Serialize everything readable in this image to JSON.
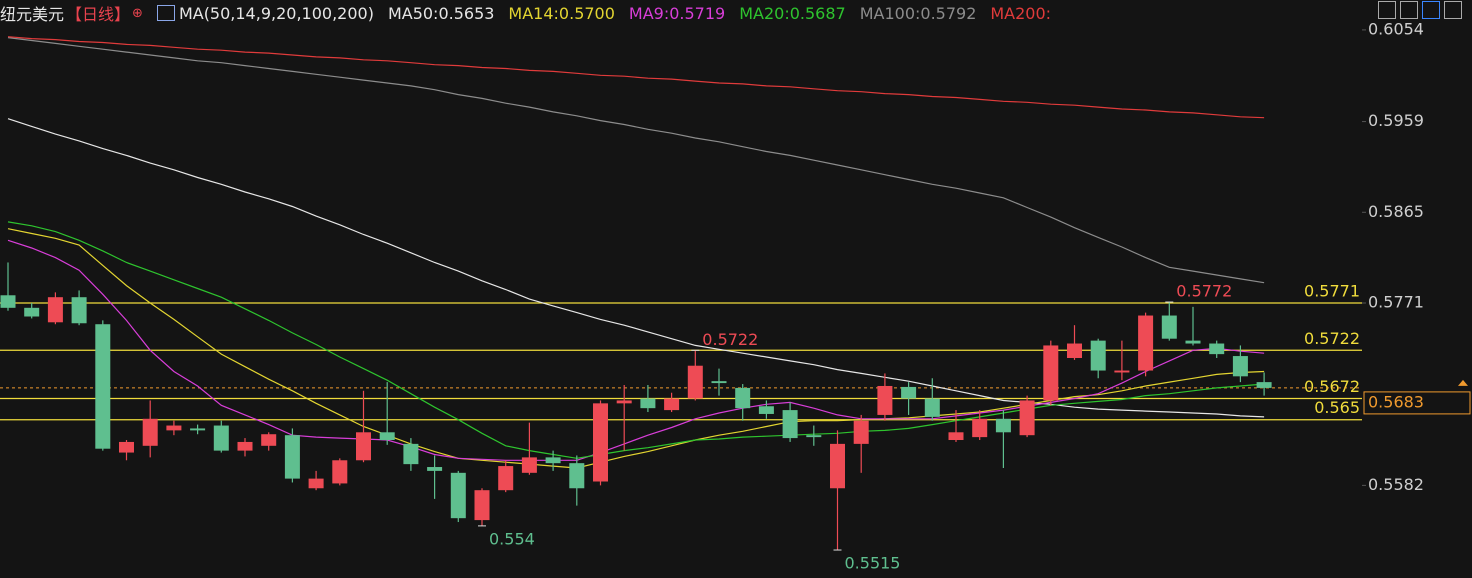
{
  "chart_data": {
    "type": "candlestick",
    "title": "纽元美元",
    "period": "【日线】",
    "indicator": "MA(50,14,9,20,100,200)",
    "up_color": "#ee4b55",
    "down_color": "#5fbf8f",
    "ylim": [
      0.5486,
      0.6085
    ],
    "yticks": [
      0.6054,
      0.5959,
      0.5865,
      0.5771,
      0.5582
    ],
    "open": [
      0.5779,
      0.5766,
      0.5751,
      0.5777,
      0.5749,
      0.5616,
      0.5623,
      0.5639,
      0.5641,
      0.5644,
      0.5618,
      0.5623,
      0.5634,
      0.5579,
      0.5584,
      0.5608,
      0.5637,
      0.5625,
      0.5601,
      0.5595,
      0.5546,
      0.5577,
      0.5595,
      0.5611,
      0.5605,
      0.5586,
      0.5667,
      0.5672,
      0.566,
      0.5672,
      0.569,
      0.5683,
      0.5664,
      0.566,
      0.5634,
      0.5579,
      0.5625,
      0.5655,
      0.5684,
      0.5672,
      0.5629,
      0.5632,
      0.5651,
      0.5634,
      0.567,
      0.5714,
      0.5732,
      0.5699,
      0.5701,
      0.5758,
      0.5732,
      0.5729,
      0.5716,
      0.5689
    ],
    "high": [
      0.5813,
      0.5771,
      0.5782,
      0.5784,
      0.5753,
      0.5629,
      0.567,
      0.5649,
      0.5645,
      0.5649,
      0.5631,
      0.5637,
      0.5641,
      0.5597,
      0.561,
      0.568,
      0.5689,
      0.5631,
      0.5613,
      0.5597,
      0.5579,
      0.5608,
      0.5647,
      0.5618,
      0.5613,
      0.567,
      0.5686,
      0.5686,
      0.5678,
      0.5722,
      0.5703,
      0.5687,
      0.567,
      0.5668,
      0.5644,
      0.5639,
      0.5655,
      0.5698,
      0.5689,
      0.5693,
      0.566,
      0.566,
      0.566,
      0.5675,
      0.5732,
      0.5748,
      0.5734,
      0.5732,
      0.5761,
      0.5772,
      0.5767,
      0.5732,
      0.5727,
      0.5699
    ],
    "low": [
      0.5763,
      0.5755,
      0.5749,
      0.5748,
      0.5618,
      0.5608,
      0.5611,
      0.5634,
      0.5635,
      0.5616,
      0.5612,
      0.5618,
      0.5585,
      0.5577,
      0.5582,
      0.5606,
      0.5624,
      0.5597,
      0.5568,
      0.5544,
      0.554,
      0.5575,
      0.5593,
      0.5597,
      0.5561,
      0.5582,
      0.5618,
      0.5658,
      0.5658,
      0.567,
      0.5675,
      0.5649,
      0.5651,
      0.5627,
      0.5623,
      0.5515,
      0.5595,
      0.5649,
      0.5655,
      0.5649,
      0.5627,
      0.5629,
      0.56,
      0.5632,
      0.5665,
      0.5712,
      0.5693,
      0.5691,
      0.5695,
      0.5732,
      0.5727,
      0.5714,
      0.5689,
      0.5675
    ],
    "close": [
      0.5766,
      0.5757,
      0.5777,
      0.575,
      0.562,
      0.5627,
      0.5651,
      0.5644,
      0.5639,
      0.5618,
      0.5627,
      0.5635,
      0.5589,
      0.5589,
      0.5608,
      0.5637,
      0.5629,
      0.5604,
      0.5597,
      0.5548,
      0.5577,
      0.5602,
      0.5611,
      0.5605,
      0.5579,
      0.5667,
      0.567,
      0.5662,
      0.5672,
      0.5706,
      0.5688,
      0.5662,
      0.5656,
      0.5631,
      0.5632,
      0.5625,
      0.5649,
      0.5685,
      0.5672,
      0.5653,
      0.5637,
      0.5651,
      0.5637,
      0.567,
      0.5727,
      0.5729,
      0.5701,
      0.5701,
      0.5758,
      0.5734,
      0.5729,
      0.5718,
      0.5695,
      0.5683
    ],
    "series": [
      {
        "name": "MA50:0.5653",
        "color": "#e6e6e6",
        "values": [
          0.5962,
          0.5954,
          0.5946,
          0.5939,
          0.5931,
          0.5924,
          0.5916,
          0.5909,
          0.5901,
          0.5894,
          0.5886,
          0.5879,
          0.5871,
          0.5861,
          0.5852,
          0.5842,
          0.5833,
          0.5823,
          0.5813,
          0.5804,
          0.5794,
          0.5785,
          0.5775,
          0.5768,
          0.5761,
          0.5754,
          0.5748,
          0.5741,
          0.5734,
          0.5727,
          0.5723,
          0.5719,
          0.5715,
          0.5711,
          0.5707,
          0.5702,
          0.5698,
          0.5694,
          0.569,
          0.5685,
          0.568,
          0.5675,
          0.567,
          0.5668,
          0.5666,
          0.5663,
          0.5661,
          0.566,
          0.5659,
          0.5658,
          0.5657,
          0.5656,
          0.5654,
          0.5653
        ]
      },
      {
        "name": "MA14:0.5700",
        "color": "#e3d531",
        "values": [
          0.5848,
          0.5843,
          0.5838,
          0.5831,
          0.581,
          0.5789,
          0.5771,
          0.5754,
          0.5736,
          0.5718,
          0.5705,
          0.5692,
          0.568,
          0.5667,
          0.5655,
          0.5643,
          0.5634,
          0.5625,
          0.5617,
          0.561,
          0.5608,
          0.5606,
          0.5604,
          0.5602,
          0.56,
          0.5606,
          0.5612,
          0.5617,
          0.5623,
          0.5629,
          0.5634,
          0.5638,
          0.5643,
          0.5648,
          0.5649,
          0.5649,
          0.565,
          0.5651,
          0.5652,
          0.5654,
          0.5656,
          0.5658,
          0.5662,
          0.5666,
          0.567,
          0.5674,
          0.5676,
          0.568,
          0.5685,
          0.5689,
          0.5693,
          0.5697,
          0.5699,
          0.57
        ]
      },
      {
        "name": "MA9:0.5719",
        "color": "#d83ed8",
        "values": [
          0.5836,
          0.5828,
          0.5818,
          0.5805,
          0.578,
          0.5753,
          0.5722,
          0.57,
          0.5685,
          0.5665,
          0.5655,
          0.5645,
          0.5634,
          0.5632,
          0.5631,
          0.563,
          0.5629,
          0.5622,
          0.5614,
          0.561,
          0.5609,
          0.5608,
          0.5608,
          0.5608,
          0.5608,
          0.5616,
          0.5625,
          0.5634,
          0.5642,
          0.5651,
          0.5657,
          0.5662,
          0.5666,
          0.5668,
          0.5662,
          0.5655,
          0.5651,
          0.5651,
          0.5651,
          0.5651,
          0.5654,
          0.5657,
          0.566,
          0.5664,
          0.5668,
          0.5672,
          0.5677,
          0.5688,
          0.57,
          0.5711,
          0.5722,
          0.5724,
          0.5721,
          0.5719
        ]
      },
      {
        "name": "MA20:0.5687",
        "color": "#2ec42e",
        "values": [
          0.5855,
          0.5851,
          0.5845,
          0.5836,
          0.5825,
          0.5813,
          0.5804,
          0.5795,
          0.5786,
          0.5777,
          0.5765,
          0.5753,
          0.574,
          0.5728,
          0.5715,
          0.5703,
          0.5691,
          0.5677,
          0.5663,
          0.565,
          0.5636,
          0.5623,
          0.5618,
          0.5614,
          0.561,
          0.5614,
          0.5618,
          0.5621,
          0.5625,
          0.5629,
          0.563,
          0.5632,
          0.5633,
          0.5634,
          0.5635,
          0.5636,
          0.5638,
          0.5639,
          0.5641,
          0.5645,
          0.5649,
          0.5653,
          0.5657,
          0.5661,
          0.5665,
          0.5667,
          0.5669,
          0.5671,
          0.5675,
          0.5677,
          0.568,
          0.5683,
          0.5685,
          0.5687
        ]
      },
      {
        "name": "MA100:0.5792",
        "color": "#8c8c8c",
        "values": [
          0.6046,
          0.6043,
          0.604,
          0.6037,
          0.6034,
          0.6031,
          0.6028,
          0.6025,
          0.6022,
          0.602,
          0.6017,
          0.6014,
          0.6011,
          0.6008,
          0.6005,
          0.6002,
          0.5999,
          0.5996,
          0.5992,
          0.5987,
          0.5983,
          0.5978,
          0.5974,
          0.5969,
          0.5965,
          0.596,
          0.5956,
          0.5951,
          0.5947,
          0.5942,
          0.5938,
          0.5933,
          0.5928,
          0.5924,
          0.5919,
          0.5914,
          0.5909,
          0.5904,
          0.5899,
          0.5894,
          0.589,
          0.5885,
          0.588,
          0.587,
          0.586,
          0.5849,
          0.5839,
          0.5829,
          0.5818,
          0.5808,
          0.5804,
          0.58,
          0.5796,
          0.5792
        ]
      },
      {
        "name": "MA200:",
        "color": "#e03b3b",
        "values": [
          0.6047,
          0.6045,
          0.6044,
          0.6042,
          0.6041,
          0.6039,
          0.6038,
          0.6036,
          0.6034,
          0.6033,
          0.6031,
          0.603,
          0.6028,
          0.6026,
          0.6025,
          0.6023,
          0.6022,
          0.602,
          0.6018,
          0.6017,
          0.6015,
          0.6014,
          0.6012,
          0.6011,
          0.6009,
          0.6007,
          0.6006,
          0.6004,
          0.6003,
          0.6001,
          0.5999,
          0.5998,
          0.5996,
          0.5995,
          0.5993,
          0.5991,
          0.599,
          0.5988,
          0.5987,
          0.5985,
          0.5984,
          0.5982,
          0.598,
          0.5979,
          0.5977,
          0.5976,
          0.5974,
          0.5972,
          0.5971,
          0.5969,
          0.5968,
          0.5966,
          0.5964,
          0.5963
        ]
      }
    ],
    "levels": [
      0.5771,
      0.5722,
      0.5672,
      0.565
    ],
    "level_color": "#f0dc3c",
    "last_price": 0.5683,
    "last_color": "#f09a2e",
    "high_marks": [
      0.5722,
      0.5772
    ],
    "low_marks": [
      0.554,
      0.5515
    ]
  }
}
